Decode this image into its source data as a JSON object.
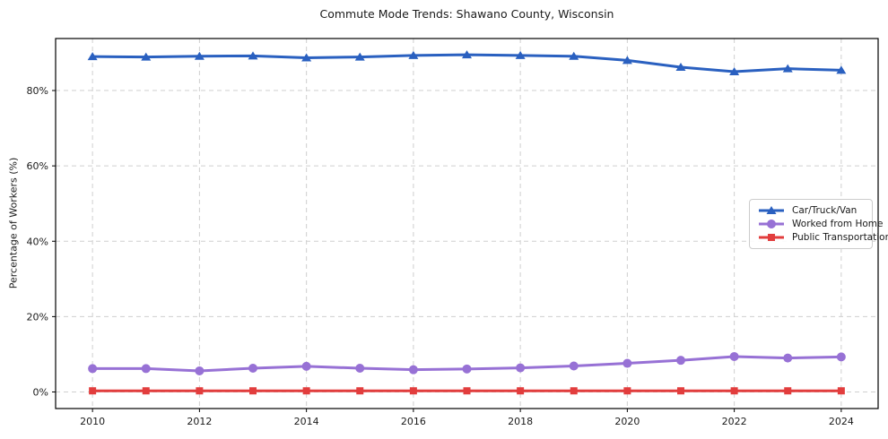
{
  "chart_data": {
    "type": "line",
    "title": "Commute Mode Trends: Shawano County, Wisconsin",
    "xlabel": "",
    "ylabel": "Percentage of Workers (%)",
    "x": [
      2010,
      2011,
      2012,
      2013,
      2014,
      2015,
      2016,
      2017,
      2018,
      2019,
      2020,
      2021,
      2022,
      2023,
      2024
    ],
    "series": [
      {
        "name": "Car/Truck/Van",
        "color": "#2a60c0",
        "marker": "triangle",
        "values": [
          89.0,
          88.9,
          89.1,
          89.2,
          88.7,
          88.9,
          89.3,
          89.5,
          89.3,
          89.1,
          88.0,
          86.2,
          85.0,
          85.8,
          85.4
        ]
      },
      {
        "name": "Worked from Home",
        "color": "#9771d5",
        "marker": "circle",
        "values": [
          6.2,
          6.2,
          5.6,
          6.3,
          6.8,
          6.3,
          5.9,
          6.1,
          6.4,
          6.9,
          7.6,
          8.4,
          9.4,
          9.0,
          9.3
        ]
      },
      {
        "name": "Public Transportation",
        "color": "#e23d3d",
        "marker": "square",
        "values": [
          0.3,
          0.3,
          0.3,
          0.3,
          0.3,
          0.3,
          0.3,
          0.3,
          0.3,
          0.3,
          0.3,
          0.3,
          0.3,
          0.3,
          0.3
        ]
      }
    ],
    "xticks": [
      2010,
      2012,
      2014,
      2016,
      2018,
      2020,
      2022,
      2024
    ],
    "xtick_labels": [
      "2010",
      "2012",
      "2014",
      "2016",
      "2018",
      "2020",
      "2022",
      "2024"
    ],
    "yticks": [
      0,
      20,
      40,
      60,
      80
    ],
    "ytick_labels": [
      "0%",
      "20%",
      "40%",
      "60%",
      "80%"
    ],
    "xlim": [
      2009.31,
      2024.69
    ],
    "ylim": [
      -4.4,
      93.8
    ],
    "grid": true,
    "grid_color": "#cfcfcf",
    "legend_position": "center right"
  }
}
